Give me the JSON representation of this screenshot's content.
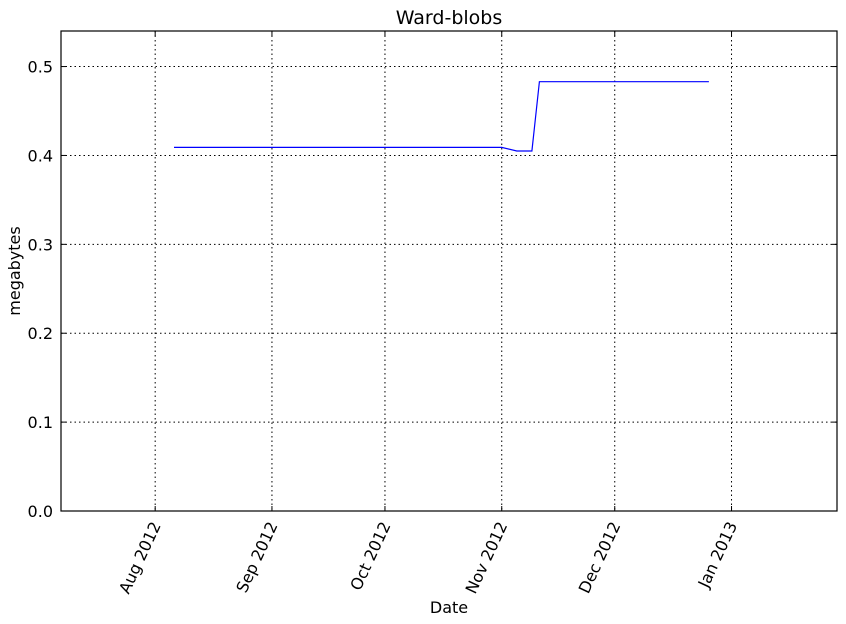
{
  "chart_data": {
    "type": "line",
    "title": "Ward-blobs",
    "xlabel": "Date",
    "ylabel": "megabytes",
    "xlim": [
      "2012-07-07",
      "2013-01-29"
    ],
    "ylim": [
      0,
      0.54
    ],
    "grid": true,
    "line_color": "#0000ff",
    "x_ticks": [
      {
        "date": "2012-08-01",
        "label": "Aug 2012"
      },
      {
        "date": "2012-09-01",
        "label": "Sep 2012"
      },
      {
        "date": "2012-10-01",
        "label": "Oct 2012"
      },
      {
        "date": "2012-11-01",
        "label": "Nov 2012"
      },
      {
        "date": "2012-12-01",
        "label": "Dec 2012"
      },
      {
        "date": "2013-01-01",
        "label": "Jan 2013"
      }
    ],
    "y_ticks": [
      {
        "value": 0.0,
        "label": "0.0"
      },
      {
        "value": 0.1,
        "label": "0.1"
      },
      {
        "value": 0.2,
        "label": "0.2"
      },
      {
        "value": 0.3,
        "label": "0.3"
      },
      {
        "value": 0.4,
        "label": "0.4"
      },
      {
        "value": 0.5,
        "label": "0.5"
      }
    ],
    "series": [
      {
        "x": [
          "2012-08-06",
          "2012-11-01",
          "2012-11-05",
          "2012-11-09",
          "2012-11-11",
          "2012-12-26"
        ],
        "y": [
          0.409,
          0.409,
          0.405,
          0.405,
          0.483,
          0.483
        ]
      }
    ]
  }
}
